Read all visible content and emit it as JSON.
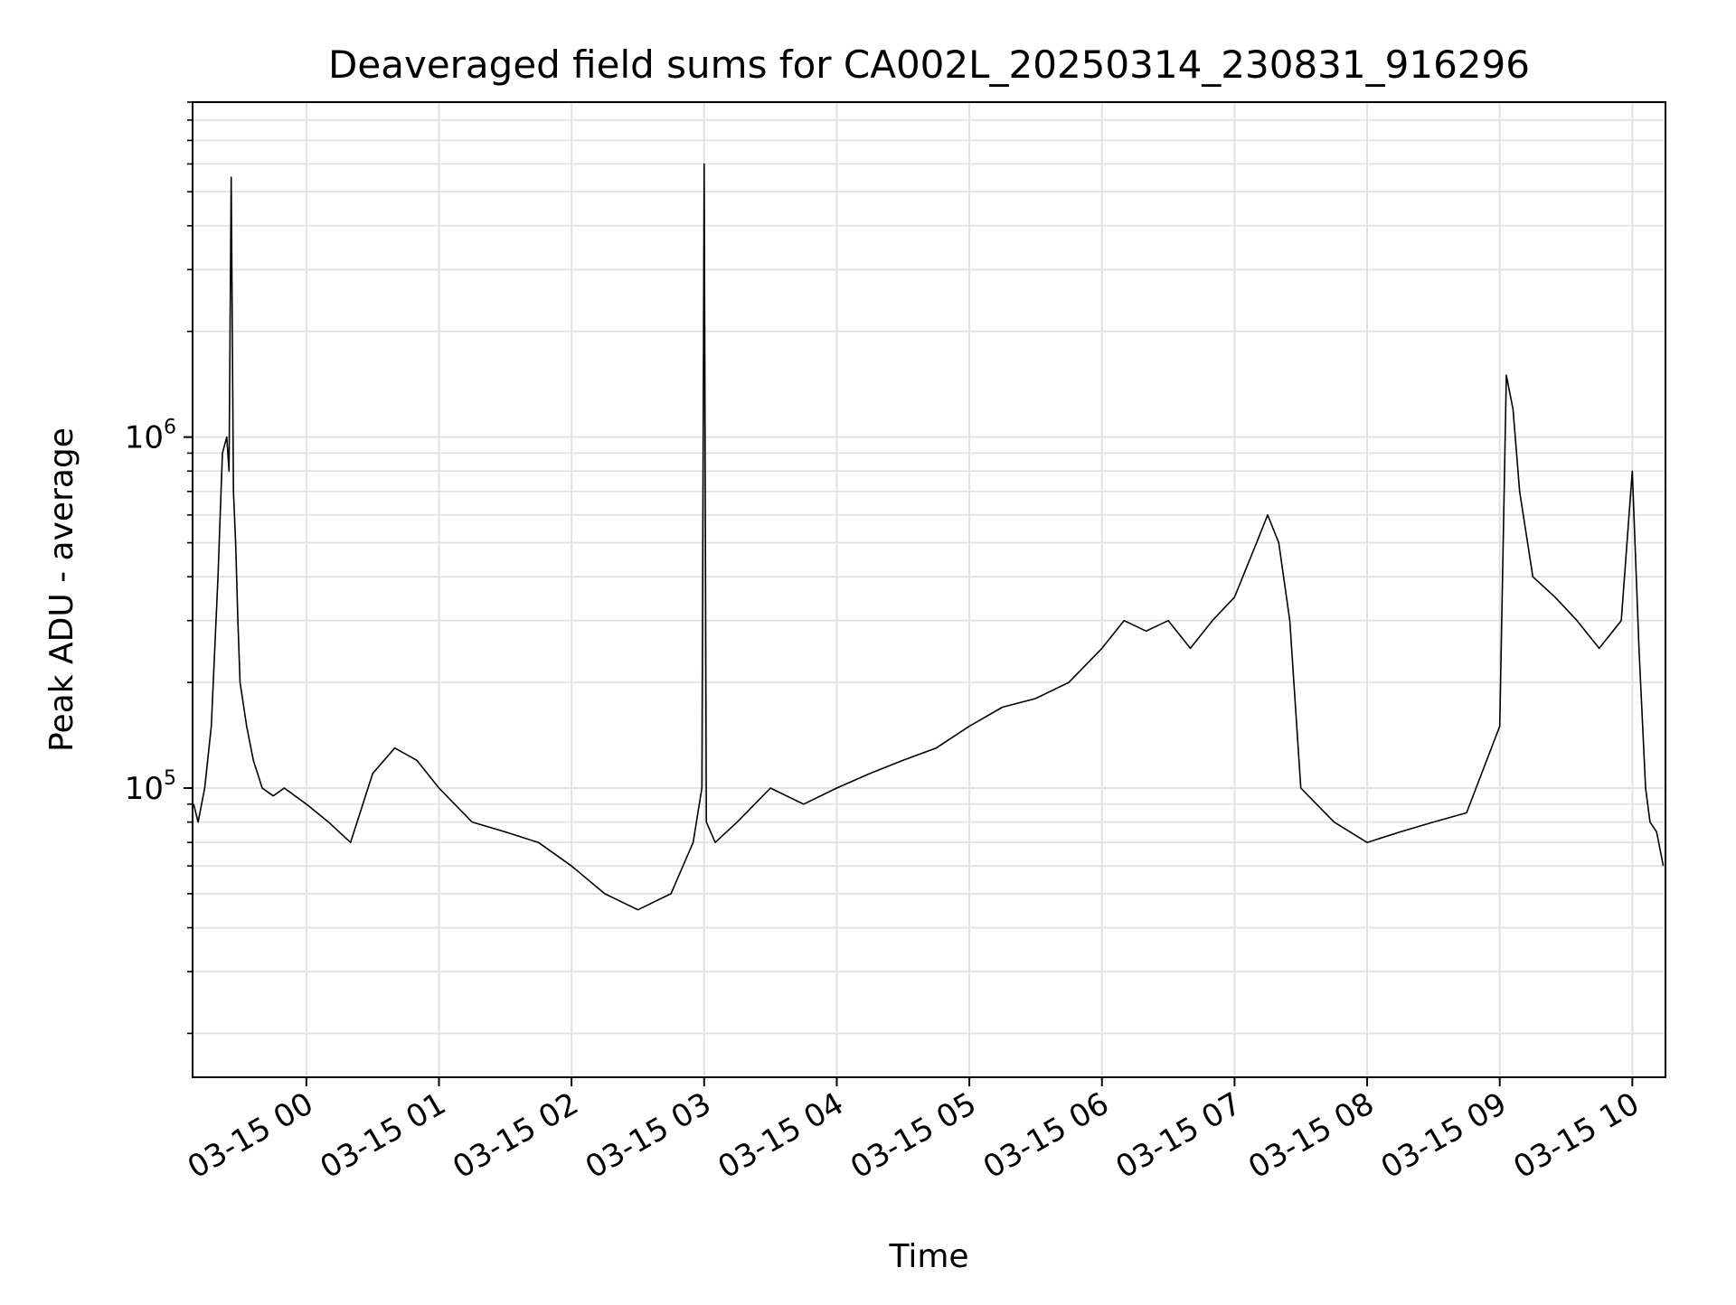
{
  "chart_data": {
    "type": "line",
    "title": "Deaveraged field sums for CA002L_20250314_230831_916296",
    "xlabel": "Time",
    "ylabel": "Peak ADU - average",
    "x_axis": {
      "kind": "datetime",
      "xlim": [
        "2025-03-14T23:08:31",
        "2025-03-15T10:15:00"
      ],
      "ticks": [
        "2025-03-15T00:00",
        "2025-03-15T01:00",
        "2025-03-15T02:00",
        "2025-03-15T03:00",
        "2025-03-15T04:00",
        "2025-03-15T05:00",
        "2025-03-15T06:00",
        "2025-03-15T07:00",
        "2025-03-15T08:00",
        "2025-03-15T09:00",
        "2025-03-15T10:00"
      ],
      "tick_labels": [
        "03-15 00",
        "03-15 01",
        "03-15 02",
        "03-15 03",
        "03-15 04",
        "03-15 05",
        "03-15 06",
        "03-15 07",
        "03-15 08",
        "03-15 09",
        "03-15 10"
      ],
      "tick_rotation": 30
    },
    "y_axis": {
      "scale": "log",
      "ylim": [
        15000,
        9000000
      ],
      "ticks": [
        100000,
        1000000
      ],
      "tick_labels": [
        {
          "base": "10",
          "exp": "5"
        },
        {
          "base": "10",
          "exp": "6"
        }
      ]
    },
    "grid": true,
    "legend": "none",
    "line_color": "#000000",
    "series": [
      {
        "x": [
          "2025-03-14T23:09",
          "2025-03-14T23:11",
          "2025-03-14T23:14",
          "2025-03-14T23:17",
          "2025-03-14T23:20",
          "2025-03-14T23:22",
          "2025-03-14T23:24",
          "2025-03-14T23:25",
          "2025-03-14T23:26",
          "2025-03-14T23:27",
          "2025-03-14T23:28",
          "2025-03-14T23:29",
          "2025-03-14T23:30",
          "2025-03-14T23:33",
          "2025-03-14T23:36",
          "2025-03-14T23:40",
          "2025-03-14T23:45",
          "2025-03-14T23:50",
          "2025-03-15T00:00",
          "2025-03-15T00:10",
          "2025-03-15T00:20",
          "2025-03-15T00:30",
          "2025-03-15T00:40",
          "2025-03-15T00:50",
          "2025-03-15T01:00",
          "2025-03-15T01:15",
          "2025-03-15T01:30",
          "2025-03-15T01:45",
          "2025-03-15T02:00",
          "2025-03-15T02:15",
          "2025-03-15T02:30",
          "2025-03-15T02:45",
          "2025-03-15T02:55",
          "2025-03-15T02:59",
          "2025-03-15T03:00",
          "2025-03-15T03:01",
          "2025-03-15T03:05",
          "2025-03-15T03:15",
          "2025-03-15T03:30",
          "2025-03-15T03:45",
          "2025-03-15T04:00",
          "2025-03-15T04:15",
          "2025-03-15T04:30",
          "2025-03-15T04:45",
          "2025-03-15T05:00",
          "2025-03-15T05:15",
          "2025-03-15T05:30",
          "2025-03-15T05:45",
          "2025-03-15T06:00",
          "2025-03-15T06:10",
          "2025-03-15T06:20",
          "2025-03-15T06:30",
          "2025-03-15T06:40",
          "2025-03-15T06:50",
          "2025-03-15T07:00",
          "2025-03-15T07:10",
          "2025-03-15T07:15",
          "2025-03-15T07:20",
          "2025-03-15T07:25",
          "2025-03-15T07:30",
          "2025-03-15T07:45",
          "2025-03-15T08:00",
          "2025-03-15T08:15",
          "2025-03-15T08:30",
          "2025-03-15T08:45",
          "2025-03-15T09:00",
          "2025-03-15T09:03",
          "2025-03-15T09:06",
          "2025-03-15T09:09",
          "2025-03-15T09:15",
          "2025-03-15T09:25",
          "2025-03-15T09:35",
          "2025-03-15T09:45",
          "2025-03-15T09:55",
          "2025-03-15T10:00",
          "2025-03-15T10:03",
          "2025-03-15T10:06",
          "2025-03-15T10:08",
          "2025-03-15T10:11",
          "2025-03-15T10:14"
        ],
        "y": [
          90000,
          80000,
          100000,
          150000,
          400000,
          900000,
          1000000,
          800000,
          5500000,
          700000,
          500000,
          300000,
          200000,
          150000,
          120000,
          100000,
          95000,
          100000,
          90000,
          80000,
          70000,
          110000,
          130000,
          120000,
          100000,
          80000,
          75000,
          70000,
          60000,
          50000,
          45000,
          50000,
          70000,
          100000,
          6000000,
          80000,
          70000,
          80000,
          100000,
          90000,
          100000,
          110000,
          120000,
          130000,
          150000,
          170000,
          180000,
          200000,
          250000,
          300000,
          280000,
          300000,
          250000,
          300000,
          350000,
          500000,
          600000,
          500000,
          300000,
          100000,
          80000,
          70000,
          75000,
          80000,
          85000,
          150000,
          1500000,
          1200000,
          700000,
          400000,
          350000,
          300000,
          250000,
          300000,
          800000,
          250000,
          100000,
          80000,
          75000,
          60000
        ]
      }
    ]
  }
}
